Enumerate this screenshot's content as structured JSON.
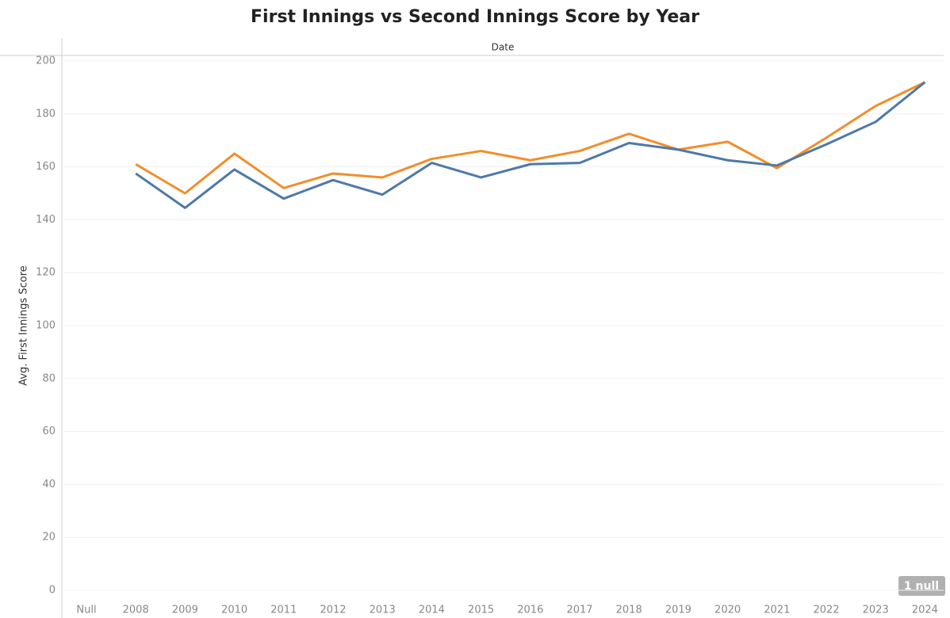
{
  "chart_data": {
    "type": "line",
    "title": "First Innings vs Second Innings Score by Year",
    "x_header": "Date",
    "ylabel": "Avg. First Innings Score",
    "annotation": "1 null",
    "categories": [
      "Null",
      "2008",
      "2009",
      "2010",
      "2011",
      "2012",
      "2013",
      "2014",
      "2015",
      "2016",
      "2017",
      "2018",
      "2019",
      "2020",
      "2021",
      "2022",
      "2023",
      "2024"
    ],
    "series": [
      {
        "color": "#f28e2b",
        "values": [
          null,
          161,
          150,
          165,
          152,
          157.5,
          156,
          163,
          166,
          162.5,
          166,
          172.5,
          166.5,
          169.5,
          159.5,
          171,
          183,
          192
        ]
      },
      {
        "color": "#4e79a7",
        "values": [
          null,
          157.5,
          144.5,
          159,
          148,
          155,
          149.5,
          161.5,
          156,
          161,
          161.5,
          169,
          166.5,
          162.5,
          160.5,
          168.5,
          177,
          192
        ]
      }
    ],
    "ylim": [
      0,
      200
    ],
    "yticks": [
      0,
      20,
      40,
      60,
      80,
      100,
      120,
      140,
      160,
      180,
      200
    ],
    "grid": true
  }
}
